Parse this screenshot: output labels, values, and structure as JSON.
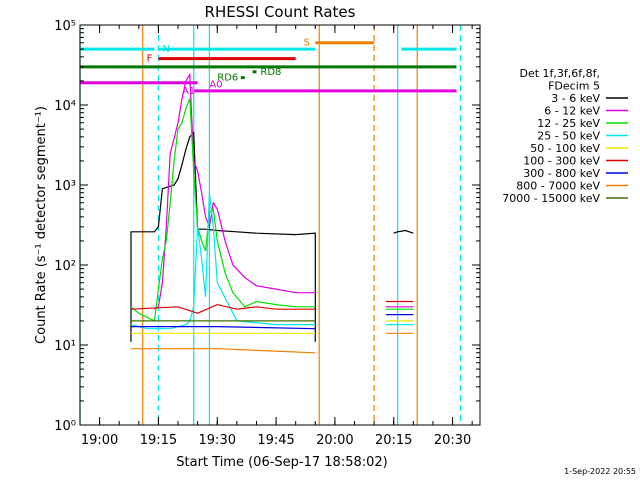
{
  "chart_data": {
    "type": "line",
    "title": "RHESSI Count Rates",
    "xlabel": "Start Time (06-Sep-17 18:58:02)",
    "ylabel": "Count Rate (s⁻¹ detector segment⁻¹)",
    "x_scale": "time",
    "y_scale": "log",
    "xlim": [
      "18:55",
      "20:37"
    ],
    "ylim": [
      1,
      100000
    ],
    "x_ticks": [
      "19:00",
      "19:15",
      "19:30",
      "19:45",
      "20:00",
      "20:15",
      "20:30"
    ],
    "y_ticks": [
      "10⁰",
      "10¹",
      "10²",
      "10³",
      "10⁴",
      "10⁵"
    ],
    "timestamp": "1-Sep-2022 20:55",
    "legend": {
      "header": [
        "Det 1f,3f,6f,8f,",
        "FDecim 5"
      ],
      "placement": "right",
      "entries": [
        {
          "label": "3 - 6 keV",
          "color": "#000000"
        },
        {
          "label": "6 - 12 keV",
          "color": "#e000e0"
        },
        {
          "label": "12 - 25 keV",
          "color": "#00e000"
        },
        {
          "label": "25 - 50 keV",
          "color": "#00e8e8"
        },
        {
          "label": "50 - 100 keV",
          "color": "#e8e800"
        },
        {
          "label": "100 - 300 keV",
          "color": "#e00000"
        },
        {
          "label": "300 - 800 keV",
          "color": "#0000e0"
        },
        {
          "label": "800 - 7000 keV",
          "color": "#f08000"
        },
        {
          "label": "7000 - 15000 keV",
          "color": "#407000"
        }
      ]
    },
    "series": [
      {
        "name": "3 - 6 keV",
        "color": "#000000",
        "x": [
          "19:08",
          "19:08",
          "19:14",
          "19:15",
          "19:16",
          "19:19",
          "19:20",
          "19:21",
          "19:22",
          "19:23",
          "19:24",
          "19:25",
          "19:27",
          "19:30",
          "19:35",
          "19:40",
          "19:50",
          "19:55",
          "19:55"
        ],
        "y": [
          11,
          260,
          260,
          300,
          900,
          1000,
          1200,
          1800,
          2800,
          4000,
          4500,
          280,
          280,
          270,
          260,
          250,
          240,
          250,
          11
        ]
      },
      {
        "name": "3 - 6 keV",
        "color": "#000000",
        "x": [
          "20:15",
          "20:16",
          "20:18",
          "20:20"
        ],
        "y": [
          250,
          260,
          270,
          250
        ]
      },
      {
        "name": "6 - 12 keV",
        "color": "#e000e0",
        "x": [
          "19:14",
          "19:15",
          "19:16",
          "19:17",
          "19:18",
          "19:19",
          "19:20",
          "19:21",
          "19:22",
          "19:23",
          "19:24",
          "19:25",
          "19:26",
          "19:27",
          "19:28",
          "19:29",
          "19:30",
          "19:32",
          "19:34",
          "19:37",
          "19:40",
          "19:45",
          "19:50",
          "19:55"
        ],
        "y": [
          28,
          30,
          60,
          300,
          2500,
          3800,
          6000,
          12000,
          20000,
          24000,
          2000,
          1500,
          800,
          400,
          300,
          600,
          500,
          200,
          100,
          70,
          55,
          50,
          45,
          45
        ]
      },
      {
        "name": "6 - 12 keV",
        "color": "#e000e0",
        "x": [
          "20:13",
          "20:20"
        ],
        "y": [
          30,
          30
        ]
      },
      {
        "name": "12 - 25 keV",
        "color": "#00e000",
        "x": [
          "19:08",
          "19:10",
          "19:14",
          "19:15",
          "19:16",
          "19:17",
          "19:18",
          "19:19",
          "19:20",
          "19:21",
          "19:22",
          "19:23",
          "19:24",
          "19:25",
          "19:26",
          "19:27",
          "19:28",
          "19:29",
          "19:30",
          "19:32",
          "19:34",
          "19:37",
          "19:40",
          "19:45",
          "19:50",
          "19:55"
        ],
        "y": [
          30,
          25,
          20,
          50,
          120,
          200,
          600,
          2000,
          5000,
          6000,
          9000,
          12000,
          1500,
          300,
          200,
          150,
          450,
          500,
          200,
          80,
          45,
          30,
          35,
          32,
          30,
          30
        ]
      },
      {
        "name": "12 - 25 keV",
        "color": "#00e000",
        "x": [
          "20:13",
          "20:20"
        ],
        "y": [
          28,
          28
        ]
      },
      {
        "name": "25 - 50 keV",
        "color": "#00e8e8",
        "x": [
          "19:08",
          "19:12",
          "19:18",
          "19:20",
          "19:22",
          "19:23",
          "19:24",
          "19:25",
          "19:26",
          "19:27",
          "19:28",
          "19:29",
          "19:30",
          "19:35",
          "19:45",
          "19:55"
        ],
        "y": [
          18,
          16,
          16,
          17,
          18,
          20,
          30,
          300,
          120,
          40,
          800,
          300,
          60,
          20,
          18,
          18
        ]
      },
      {
        "name": "25 - 50 keV",
        "color": "#00e8e8",
        "x": [
          "20:13",
          "20:20"
        ],
        "y": [
          18,
          18
        ]
      },
      {
        "name": "50 - 100 keV",
        "color": "#e8e800",
        "x": [
          "19:08",
          "19:30",
          "19:55"
        ],
        "y": [
          14,
          14,
          14
        ]
      },
      {
        "name": "50 - 100 keV",
        "color": "#e8e800",
        "x": [
          "20:13",
          "20:20"
        ],
        "y": [
          20,
          20
        ]
      },
      {
        "name": "100 - 300 keV",
        "color": "#e00000",
        "x": [
          "19:08",
          "19:20",
          "19:25",
          "19:30",
          "19:35",
          "19:40",
          "19:45",
          "19:55"
        ],
        "y": [
          28,
          30,
          25,
          32,
          28,
          30,
          28,
          28
        ]
      },
      {
        "name": "100 - 300 keV",
        "color": "#e00000",
        "x": [
          "20:13",
          "20:20"
        ],
        "y": [
          35,
          35
        ]
      },
      {
        "name": "300 - 800 keV",
        "color": "#0000e0",
        "x": [
          "19:08",
          "19:30",
          "19:55"
        ],
        "y": [
          17,
          17,
          16
        ]
      },
      {
        "name": "300 - 800 keV",
        "color": "#0000e0",
        "x": [
          "20:13",
          "20:20"
        ],
        "y": [
          24,
          24
        ]
      },
      {
        "name": "800 - 7000 keV",
        "color": "#f08000",
        "x": [
          "19:08",
          "19:30",
          "19:55"
        ],
        "y": [
          9,
          9,
          8
        ]
      },
      {
        "name": "800 - 7000 keV",
        "color": "#f08000",
        "x": [
          "20:13",
          "20:20"
        ],
        "y": [
          14,
          14
        ]
      },
      {
        "name": "7000 - 15000 keV",
        "color": "#407000",
        "x": [
          "19:08",
          "19:30",
          "19:55"
        ],
        "y": [
          20,
          20,
          20
        ]
      }
    ],
    "flags": [
      {
        "label": "N",
        "color": "#00e8e8",
        "y": 50000,
        "segments": [
          [
            "18:55",
            "19:14"
          ],
          [
            "19:15",
            "19:55"
          ],
          [
            "20:17",
            "20:31"
          ]
        ],
        "label_at": "19:16"
      },
      {
        "label": "S",
        "color": "#f08000",
        "y": 60000,
        "segments": [
          [
            "19:55",
            "20:10"
          ]
        ],
        "label_at": "19:52"
      },
      {
        "label": "F",
        "color": "#e00000",
        "y": 38000,
        "segments": [
          [
            "19:15",
            "19:50"
          ]
        ],
        "label_at": "19:12"
      },
      {
        "label": "",
        "color": "#007800",
        "y": 30000,
        "segments": [
          [
            "18:55",
            "20:31"
          ]
        ]
      },
      {
        "label": "RD8",
        "color": "#007800",
        "y": 26000,
        "segments": [
          [
            "19:39",
            "19:40"
          ]
        ],
        "label_at": "19:41"
      },
      {
        "label": "RD6",
        "color": "#007800",
        "y": 22000,
        "segments": [
          [
            "19:36",
            "19:37"
          ]
        ],
        "label_at": "19:30"
      },
      {
        "label": "",
        "color": "#e000e0",
        "y": 19000,
        "segments": [
          [
            "18:55",
            "19:25"
          ]
        ]
      },
      {
        "label": "A1",
        "color": "#e000e0",
        "y": 15000,
        "segments": [
          [
            "19:24",
            "20:31"
          ]
        ],
        "label_at": "19:21"
      },
      {
        "label": "A0",
        "color": "#e000e0",
        "y": 18000,
        "segments": [],
        "label_at": "19:28"
      }
    ],
    "vlines": [
      {
        "x": "18:55",
        "color": "#00e8e8",
        "style": "solid"
      },
      {
        "x": "19:11",
        "color": "#f08000",
        "style": "solid"
      },
      {
        "x": "19:15",
        "color": "#00e8e8",
        "style": "dashed"
      },
      {
        "x": "19:24",
        "color": "#00e8e8",
        "style": "solid"
      },
      {
        "x": "19:28",
        "color": "#00e8e8",
        "style": "solid"
      },
      {
        "x": "19:56",
        "color": "#f08000",
        "style": "solid"
      },
      {
        "x": "20:10",
        "color": "#f08000",
        "style": "dashed"
      },
      {
        "x": "20:16",
        "color": "#00e8e8",
        "style": "solid"
      },
      {
        "x": "20:21",
        "color": "#f08000",
        "style": "solid"
      },
      {
        "x": "20:32",
        "color": "#00e8e8",
        "style": "dashed"
      }
    ]
  }
}
